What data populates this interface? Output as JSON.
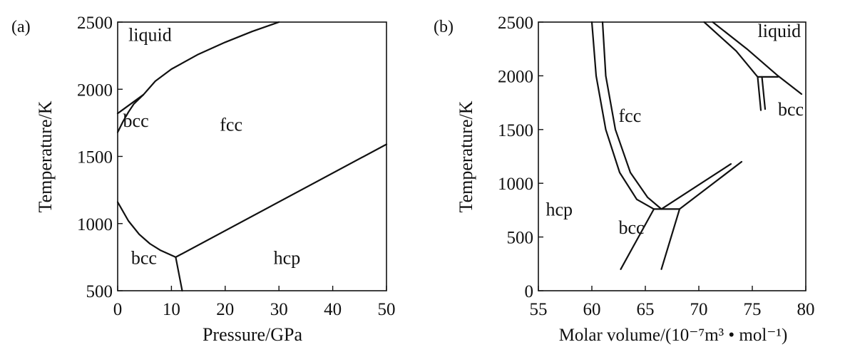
{
  "chart_data": [
    {
      "panel": "(a)",
      "type": "line",
      "title": "",
      "xlabel": "Pressure/GPa",
      "ylabel": "Temperature/K",
      "xlim": [
        0,
        50
      ],
      "ylim": [
        500,
        2500
      ],
      "xticks": [
        0,
        10,
        20,
        30,
        40,
        50
      ],
      "yticks": [
        500,
        1000,
        1500,
        2000,
        2500
      ],
      "grid": false,
      "phase_labels": [
        {
          "text": "liquid",
          "x": 2,
          "y": 2360
        },
        {
          "text": "bcc",
          "x": 1,
          "y": 1720
        },
        {
          "text": "fcc",
          "x": 19,
          "y": 1690
        },
        {
          "text": "bcc",
          "x": 2.5,
          "y": 700
        },
        {
          "text": "hcp",
          "x": 29,
          "y": 700
        }
      ],
      "series": [
        {
          "values": [
            [
              0,
              1820
            ],
            [
              4.8,
              1960
            ],
            [
              7,
              2060
            ],
            [
              10,
              2150
            ],
            [
              15,
              2260
            ],
            [
              20,
              2350
            ],
            [
              25,
              2430
            ],
            [
              30,
              2500
            ]
          ]
        },
        {
          "values": [
            [
              0,
              1680
            ],
            [
              1,
              1760
            ],
            [
              2,
              1830
            ],
            [
              3,
              1890
            ],
            [
              4.8,
              1960
            ]
          ]
        },
        {
          "values": [
            [
              0,
              1160
            ],
            [
              2,
              1020
            ],
            [
              4,
              920
            ],
            [
              6,
              850
            ],
            [
              8,
              800
            ],
            [
              10.8,
              750
            ]
          ]
        },
        {
          "values": [
            [
              10.8,
              750
            ],
            [
              12,
              500
            ]
          ]
        },
        {
          "values": [
            [
              10.8,
              750
            ],
            [
              50,
              1590
            ]
          ]
        }
      ]
    },
    {
      "panel": "(b)",
      "type": "line",
      "title": "",
      "xlabel": "Molar volume/(10⁻⁷m³ • mol⁻¹)",
      "ylabel": "Temperature/K",
      "xlim": [
        55,
        80
      ],
      "ylim": [
        0,
        2500
      ],
      "xticks": [
        55,
        60,
        65,
        70,
        75,
        80
      ],
      "yticks": [
        0,
        500,
        1000,
        1500,
        2000,
        2500
      ],
      "grid": false,
      "phase_labels": [
        {
          "text": "liquid",
          "x": 75.5,
          "y": 2360
        },
        {
          "text": "fcc",
          "x": 62.5,
          "y": 1570
        },
        {
          "text": "bcc",
          "x": 77.4,
          "y": 1630
        },
        {
          "text": "hcp",
          "x": 55.7,
          "y": 700
        },
        {
          "text": "bcc",
          "x": 62.5,
          "y": 530
        }
      ],
      "series": [
        {
          "values": [
            [
              60,
              2500
            ],
            [
              60.4,
              2000
            ],
            [
              61.3,
              1500
            ],
            [
              62.6,
              1100
            ],
            [
              64.2,
              850
            ],
            [
              65.8,
              760
            ]
          ]
        },
        {
          "values": [
            [
              61,
              2500
            ],
            [
              61.3,
              2000
            ],
            [
              62.2,
              1500
            ],
            [
              63.6,
              1100
            ],
            [
              65.2,
              870
            ],
            [
              66.5,
              760
            ]
          ]
        },
        {
          "values": [
            [
              65.8,
              760
            ],
            [
              68.2,
              760
            ]
          ]
        },
        {
          "values": [
            [
              65.8,
              760
            ],
            [
              62.7,
              200
            ]
          ]
        },
        {
          "values": [
            [
              68.2,
              760
            ],
            [
              66.5,
              200
            ]
          ]
        },
        {
          "values": [
            [
              66.5,
              760
            ],
            [
              73,
              1180
            ]
          ]
        },
        {
          "values": [
            [
              68.2,
              760
            ],
            [
              74,
              1200
            ]
          ]
        },
        {
          "values": [
            [
              70.5,
              2500
            ],
            [
              73.5,
              2230
            ],
            [
              75.5,
              1990
            ]
          ]
        },
        {
          "values": [
            [
              71.3,
              2500
            ],
            [
              74.5,
              2250
            ],
            [
              77.4,
              2000
            ],
            [
              79.6,
              1830
            ]
          ]
        },
        {
          "values": [
            [
              75.5,
              1990
            ],
            [
              77.4,
              1990
            ]
          ]
        },
        {
          "values": [
            [
              75.5,
              1990
            ],
            [
              75.8,
              1680
            ]
          ]
        },
        {
          "values": [
            [
              75.9,
              1990
            ],
            [
              76.2,
              1690
            ]
          ]
        }
      ]
    }
  ]
}
